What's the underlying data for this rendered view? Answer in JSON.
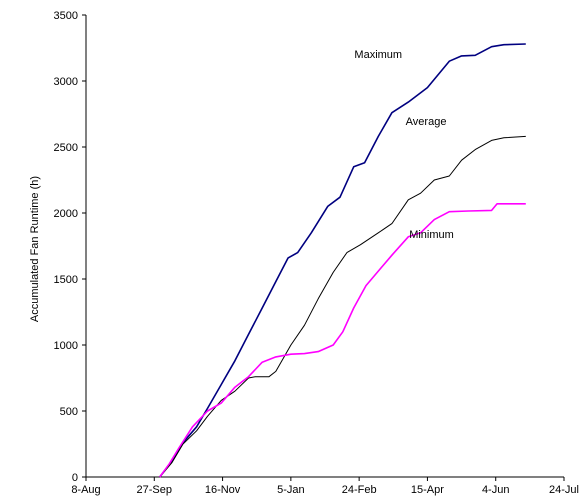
{
  "chart_data": {
    "type": "line",
    "ylabel": "Accumulated Fan Runtime (h)",
    "xlabel": "",
    "ylim": [
      0,
      3500
    ],
    "yticks": [
      0,
      500,
      1000,
      1500,
      2000,
      2500,
      3000,
      3500
    ],
    "xlim": [
      "8-Aug",
      "24-Jul"
    ],
    "xticks": [
      "8-Aug",
      "27-Sep",
      "16-Nov",
      "5-Jan",
      "24-Feb",
      "15-Apr",
      "4-Jun",
      "24-Jul"
    ],
    "grid": false,
    "series": [
      {
        "name": "Maximum",
        "color": "#000080",
        "points": [
          [
            "1-Oct",
            0
          ],
          [
            "10-Oct",
            120
          ],
          [
            "18-Oct",
            260
          ],
          [
            "28-Oct",
            380
          ],
          [
            "5-Nov",
            520
          ],
          [
            "15-Nov",
            700
          ],
          [
            "25-Nov",
            880
          ],
          [
            "5-Dec",
            1080
          ],
          [
            "15-Dec",
            1280
          ],
          [
            "25-Dec",
            1480
          ],
          [
            "3-Jan",
            1660
          ],
          [
            "10-Jan",
            1700
          ],
          [
            "20-Jan",
            1850
          ],
          [
            "1-Feb",
            2050
          ],
          [
            "10-Feb",
            2120
          ],
          [
            "20-Feb",
            2350
          ],
          [
            "28-Feb",
            2380
          ],
          [
            "10-Mar",
            2580
          ],
          [
            "20-Mar",
            2760
          ],
          [
            "1-Apr",
            2840
          ],
          [
            "15-Apr",
            2950
          ],
          [
            "1-May",
            3150
          ],
          [
            "10-May",
            3190
          ],
          [
            "20-May",
            3195
          ],
          [
            "1-Jun",
            3260
          ],
          [
            "10-Jun",
            3275
          ],
          [
            "26-Jun",
            3280
          ]
        ]
      },
      {
        "name": "Average",
        "color": "#000000",
        "points": [
          [
            "1-Oct",
            0
          ],
          [
            "10-Oct",
            110
          ],
          [
            "18-Oct",
            250
          ],
          [
            "28-Oct",
            350
          ],
          [
            "5-Nov",
            460
          ],
          [
            "15-Nov",
            580
          ],
          [
            "25-Nov",
            650
          ],
          [
            "5-Dec",
            750
          ],
          [
            "10-Dec",
            760
          ],
          [
            "20-Dec",
            760
          ],
          [
            "25-Dec",
            800
          ],
          [
            "5-Jan",
            1000
          ],
          [
            "15-Jan",
            1150
          ],
          [
            "25-Jan",
            1350
          ],
          [
            "5-Feb",
            1550
          ],
          [
            "15-Feb",
            1700
          ],
          [
            "25-Feb",
            1760
          ],
          [
            "10-Mar",
            1850
          ],
          [
            "20-Mar",
            1920
          ],
          [
            "1-Apr",
            2100
          ],
          [
            "10-Apr",
            2150
          ],
          [
            "20-Apr",
            2250
          ],
          [
            "1-May",
            2280
          ],
          [
            "10-May",
            2400
          ],
          [
            "20-May",
            2480
          ],
          [
            "1-Jun",
            2550
          ],
          [
            "10-Jun",
            2570
          ],
          [
            "26-Jun",
            2580
          ]
        ]
      },
      {
        "name": "Minimum",
        "color": "#ff00ff",
        "points": [
          [
            "1-Oct",
            0
          ],
          [
            "8-Oct",
            100
          ],
          [
            "15-Oct",
            220
          ],
          [
            "25-Oct",
            380
          ],
          [
            "5-Nov",
            500
          ],
          [
            "15-Nov",
            560
          ],
          [
            "25-Nov",
            680
          ],
          [
            "5-Dec",
            760
          ],
          [
            "15-Dec",
            870
          ],
          [
            "25-Dec",
            910
          ],
          [
            "5-Jan",
            930
          ],
          [
            "15-Jan",
            935
          ],
          [
            "25-Jan",
            950
          ],
          [
            "5-Feb",
            1000
          ],
          [
            "12-Feb",
            1100
          ],
          [
            "20-Feb",
            1280
          ],
          [
            "1-Mar",
            1450
          ],
          [
            "10-Mar",
            1560
          ],
          [
            "20-Mar",
            1680
          ],
          [
            "1-Apr",
            1820
          ],
          [
            "10-Apr",
            1850
          ],
          [
            "20-Apr",
            1950
          ],
          [
            "1-May",
            2010
          ],
          [
            "15-May",
            2015
          ],
          [
            "1-Jun",
            2020
          ],
          [
            "5-Jun",
            2070
          ],
          [
            "26-Jun",
            2070
          ]
        ]
      }
    ],
    "annotations": [
      {
        "text": "Maximum",
        "series": "Maximum",
        "at": [
          "10-Mar",
          3175
        ]
      },
      {
        "text": "Average",
        "series": "Average",
        "at": [
          "14-Apr",
          2665
        ]
      },
      {
        "text": "Minimum",
        "series": "Minimum",
        "at": [
          "18-Apr",
          1810
        ]
      }
    ]
  }
}
